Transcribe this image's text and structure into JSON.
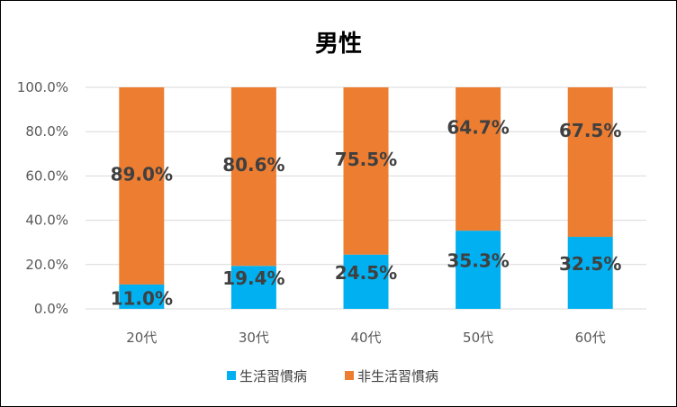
{
  "chart_data": {
    "type": "bar",
    "stacked": true,
    "title": "男性",
    "categories": [
      "20代",
      "30代",
      "40代",
      "50代",
      "60代"
    ],
    "series": [
      {
        "name": "生活習慣病",
        "color": "#00B0F0",
        "values": [
          11.0,
          19.4,
          24.5,
          35.3,
          32.5
        ],
        "labels": [
          "11.0%",
          "19.4%",
          "24.5%",
          "35.3%",
          "32.5%"
        ]
      },
      {
        "name": "非生活習慣病",
        "color": "#ED7D31",
        "values": [
          89.0,
          80.6,
          75.5,
          64.7,
          67.5
        ],
        "labels": [
          "89.0%",
          "80.6%",
          "75.5%",
          "64.7%",
          "67.5%"
        ]
      }
    ],
    "ylim": [
      0,
      100
    ],
    "yticks": [
      0,
      20,
      40,
      60,
      80,
      100
    ],
    "ytick_labels": [
      "0.0%",
      "20.0%",
      "40.0%",
      "60.0%",
      "80.0%",
      "100.0%"
    ],
    "xlabel": "",
    "ylabel": "",
    "grid": true,
    "legend": "bottom",
    "gridline_color": "#D9D9D9"
  }
}
